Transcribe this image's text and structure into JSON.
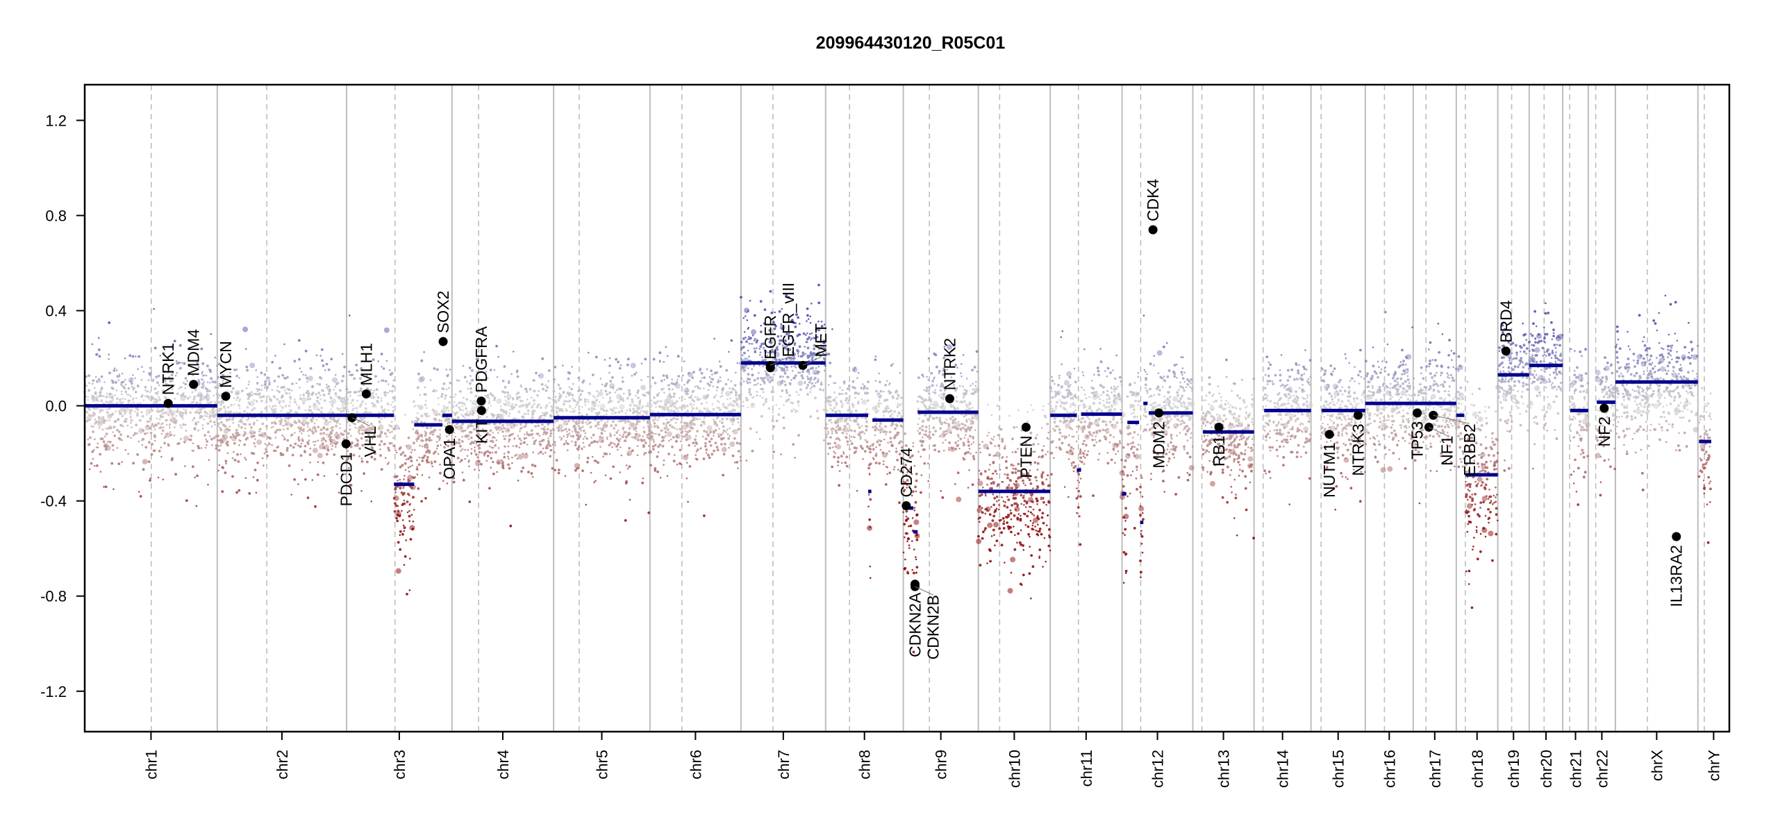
{
  "chart_data": {
    "type": "scatter",
    "title": "209964430120_R05C01",
    "xlabel": "",
    "ylabel": "",
    "ylim": [
      -1.37,
      1.35
    ],
    "yticks": [
      -1.2,
      -0.8,
      -0.4,
      0.0,
      0.4,
      0.8,
      1.2
    ],
    "ytick_labels": [
      "-1.2",
      "-0.8",
      "-0.4",
      "0.0",
      "0.4",
      "0.8",
      "1.2"
    ],
    "grid": false,
    "colors": {
      "segment": "#00008b",
      "gain": "#4646a8",
      "neutral": "#d0d0d0",
      "loss": "#8b0000",
      "gene": "#000000",
      "boundary": "#bebebe",
      "centromere": "#bebebe"
    },
    "chromosomes": [
      {
        "name": "chr1",
        "length": 249,
        "centromere": 125
      },
      {
        "name": "chr2",
        "length": 243,
        "centromere": 93
      },
      {
        "name": "chr3",
        "length": 198,
        "centromere": 91
      },
      {
        "name": "chr4",
        "length": 191,
        "centromere": 50
      },
      {
        "name": "chr5",
        "length": 181,
        "centromere": 48
      },
      {
        "name": "chr6",
        "length": 171,
        "centromere": 60
      },
      {
        "name": "chr7",
        "length": 159,
        "centromere": 60
      },
      {
        "name": "chr8",
        "length": 146,
        "centromere": 45
      },
      {
        "name": "chr9",
        "length": 141,
        "centromere": 49
      },
      {
        "name": "chr10",
        "length": 135,
        "centromere": 40
      },
      {
        "name": "chr11",
        "length": 135,
        "centromere": 53
      },
      {
        "name": "chr12",
        "length": 133,
        "centromere": 35
      },
      {
        "name": "chr13",
        "length": 115,
        "centromere": 17
      },
      {
        "name": "chr14",
        "length": 107,
        "centromere": 17
      },
      {
        "name": "chr15",
        "length": 102,
        "centromere": 19
      },
      {
        "name": "chr16",
        "length": 90,
        "centromere": 36
      },
      {
        "name": "chr17",
        "length": 81,
        "centromere": 24
      },
      {
        "name": "chr18",
        "length": 78,
        "centromere": 17
      },
      {
        "name": "chr19",
        "length": 59,
        "centromere": 26
      },
      {
        "name": "chr20",
        "length": 63,
        "centromere": 28
      },
      {
        "name": "chr21",
        "length": 48,
        "centromere": 13
      },
      {
        "name": "chr22",
        "length": 51,
        "centromere": 14
      },
      {
        "name": "chrX",
        "length": 155,
        "centromere": 60
      },
      {
        "name": "chrY",
        "length": 59,
        "centromere": 12
      }
    ],
    "segments": [
      {
        "chr": "chr1",
        "start": 0,
        "end": 249,
        "value": 0.0
      },
      {
        "chr": "chr2",
        "start": 0,
        "end": 243,
        "value": -0.04
      },
      {
        "chr": "chr3",
        "start": 0,
        "end": 89,
        "value": -0.04
      },
      {
        "chr": "chr3",
        "start": 89,
        "end": 127,
        "value": -0.33
      },
      {
        "chr": "chr3",
        "start": 127,
        "end": 180,
        "value": -0.08
      },
      {
        "chr": "chr3",
        "start": 180,
        "end": 198,
        "value": -0.04
      },
      {
        "chr": "chr4",
        "start": 0,
        "end": 191,
        "value": -0.065
      },
      {
        "chr": "chr5",
        "start": 0,
        "end": 181,
        "value": -0.05
      },
      {
        "chr": "chr6",
        "start": 0,
        "end": 171,
        "value": -0.037
      },
      {
        "chr": "chr7",
        "start": 0,
        "end": 159,
        "value": 0.18
      },
      {
        "chr": "chr8",
        "start": 0,
        "end": 80,
        "value": -0.04
      },
      {
        "chr": "chr8",
        "start": 80,
        "end": 86,
        "value": -0.36
      },
      {
        "chr": "chr8",
        "start": 88,
        "end": 146,
        "value": -0.06
      },
      {
        "chr": "chr9",
        "start": 0,
        "end": 19,
        "value": -0.43
      },
      {
        "chr": "chr9",
        "start": 19,
        "end": 27,
        "value": -0.53
      },
      {
        "chr": "chr9",
        "start": 27,
        "end": 141,
        "value": -0.027
      },
      {
        "chr": "chr10",
        "start": 0,
        "end": 135,
        "value": -0.36
      },
      {
        "chr": "chr11",
        "start": 0,
        "end": 50,
        "value": -0.04
      },
      {
        "chr": "chr11",
        "start": 50,
        "end": 58,
        "value": -0.27
      },
      {
        "chr": "chr11",
        "start": 58,
        "end": 135,
        "value": -0.035
      },
      {
        "chr": "chr12",
        "start": 0,
        "end": 8,
        "value": -0.37
      },
      {
        "chr": "chr12",
        "start": 10,
        "end": 32,
        "value": -0.07
      },
      {
        "chr": "chr12",
        "start": 34,
        "end": 40,
        "value": -0.49
      },
      {
        "chr": "chr12",
        "start": 40,
        "end": 48,
        "value": 0.01
      },
      {
        "chr": "chr12",
        "start": 50,
        "end": 133,
        "value": -0.03
      },
      {
        "chr": "chr13",
        "start": 19,
        "end": 115,
        "value": -0.11
      },
      {
        "chr": "chr14",
        "start": 19,
        "end": 107,
        "value": -0.02
      },
      {
        "chr": "chr15",
        "start": 20,
        "end": 102,
        "value": -0.02
      },
      {
        "chr": "chr16",
        "start": 0,
        "end": 90,
        "value": 0.01
      },
      {
        "chr": "chr17",
        "start": 0,
        "end": 81,
        "value": 0.01
      },
      {
        "chr": "chr18",
        "start": 0,
        "end": 15,
        "value": -0.04
      },
      {
        "chr": "chr18",
        "start": 17,
        "end": 78,
        "value": -0.29
      },
      {
        "chr": "chr19",
        "start": 0,
        "end": 59,
        "value": 0.13
      },
      {
        "chr": "chr20",
        "start": 0,
        "end": 63,
        "value": 0.17
      },
      {
        "chr": "chr21",
        "start": 14,
        "end": 48,
        "value": -0.02
      },
      {
        "chr": "chr22",
        "start": 16,
        "end": 51,
        "value": 0.015
      },
      {
        "chr": "chrX",
        "start": 0,
        "end": 155,
        "value": 0.1
      },
      {
        "chr": "chrY",
        "start": 2,
        "end": 25,
        "value": -0.15
      }
    ],
    "genes": [
      {
        "name": "NTRK1",
        "chr": "chr1",
        "pos": 156.8,
        "value": 0.01,
        "label": "above"
      },
      {
        "name": "MDM4",
        "chr": "chr1",
        "pos": 204.5,
        "value": 0.09,
        "label": "above"
      },
      {
        "name": "MYCN",
        "chr": "chr2",
        "pos": 16.0,
        "value": 0.04,
        "label": "above"
      },
      {
        "name": "PDCD1",
        "chr": "chr2",
        "pos": 242.0,
        "value": -0.16,
        "label": "below"
      },
      {
        "name": "VHL",
        "chr": "chr3",
        "pos": 10.2,
        "value": -0.05,
        "label": "below"
      },
      {
        "name": "MLH1",
        "chr": "chr3",
        "pos": 37.0,
        "value": 0.05,
        "label": "above"
      },
      {
        "name": "SOX2",
        "chr": "chr3",
        "pos": 181.4,
        "value": 0.27,
        "label": "above"
      },
      {
        "name": "OPA1",
        "chr": "chr3",
        "pos": 193.3,
        "value": -0.1,
        "label": "below"
      },
      {
        "name": "PDGFRA",
        "chr": "chr4",
        "pos": 55.1,
        "value": 0.02,
        "label": "above"
      },
      {
        "name": "KIT",
        "chr": "chr4",
        "pos": 55.5,
        "value": -0.02,
        "label": "below"
      },
      {
        "name": "EGFR",
        "chr": "chr7",
        "pos": 55.2,
        "value": 0.16,
        "label": "above"
      },
      {
        "name": "EGFR_vIII",
        "chr": "chr7",
        "pos": 55.2,
        "value": 0.17,
        "label": "above"
      },
      {
        "name": "MET",
        "chr": "chr7",
        "pos": 116.3,
        "value": 0.17,
        "label": "above"
      },
      {
        "name": "CD274",
        "chr": "chr9",
        "pos": 5.5,
        "value": -0.42,
        "label": "above"
      },
      {
        "name": "CDKN2A",
        "chr": "chr9",
        "pos": 21.97,
        "value": -0.75,
        "label": "below"
      },
      {
        "name": "CDKN2B",
        "chr": "chr9",
        "pos": 22.0,
        "value": -0.76,
        "label": "below"
      },
      {
        "name": "NTRK2",
        "chr": "chr9",
        "pos": 87.3,
        "value": 0.03,
        "label": "above"
      },
      {
        "name": "PTEN",
        "chr": "chr10",
        "pos": 89.6,
        "value": -0.09,
        "label": "below"
      },
      {
        "name": "CDK4",
        "chr": "chr12",
        "pos": 58.1,
        "value": 0.74,
        "label": "above"
      },
      {
        "name": "MDM2",
        "chr": "chr12",
        "pos": 69.2,
        "value": -0.03,
        "label": "below"
      },
      {
        "name": "RB1",
        "chr": "chr13",
        "pos": 48.9,
        "value": -0.09,
        "label": "below"
      },
      {
        "name": "NUTM1",
        "chr": "chr15",
        "pos": 34.6,
        "value": -0.12,
        "label": "below"
      },
      {
        "name": "NTRK3",
        "chr": "chr15",
        "pos": 88.5,
        "value": -0.04,
        "label": "below"
      },
      {
        "name": "TP53",
        "chr": "chr17",
        "pos": 7.6,
        "value": -0.03,
        "label": "below"
      },
      {
        "name": "NF1",
        "chr": "chr17",
        "pos": 29.5,
        "value": -0.09,
        "label": "below"
      },
      {
        "name": "ERBB2",
        "chr": "chr17",
        "pos": 37.8,
        "value": -0.04,
        "label": "below"
      },
      {
        "name": "BRD4",
        "chr": "chr19",
        "pos": 15.3,
        "value": 0.23,
        "label": "above"
      },
      {
        "name": "NF2",
        "chr": "chr22",
        "pos": 29.9,
        "value": -0.01,
        "label": "below"
      },
      {
        "name": "IL13RA2",
        "chr": "chrX",
        "pos": 114.5,
        "value": -0.55,
        "label": "below"
      }
    ]
  }
}
